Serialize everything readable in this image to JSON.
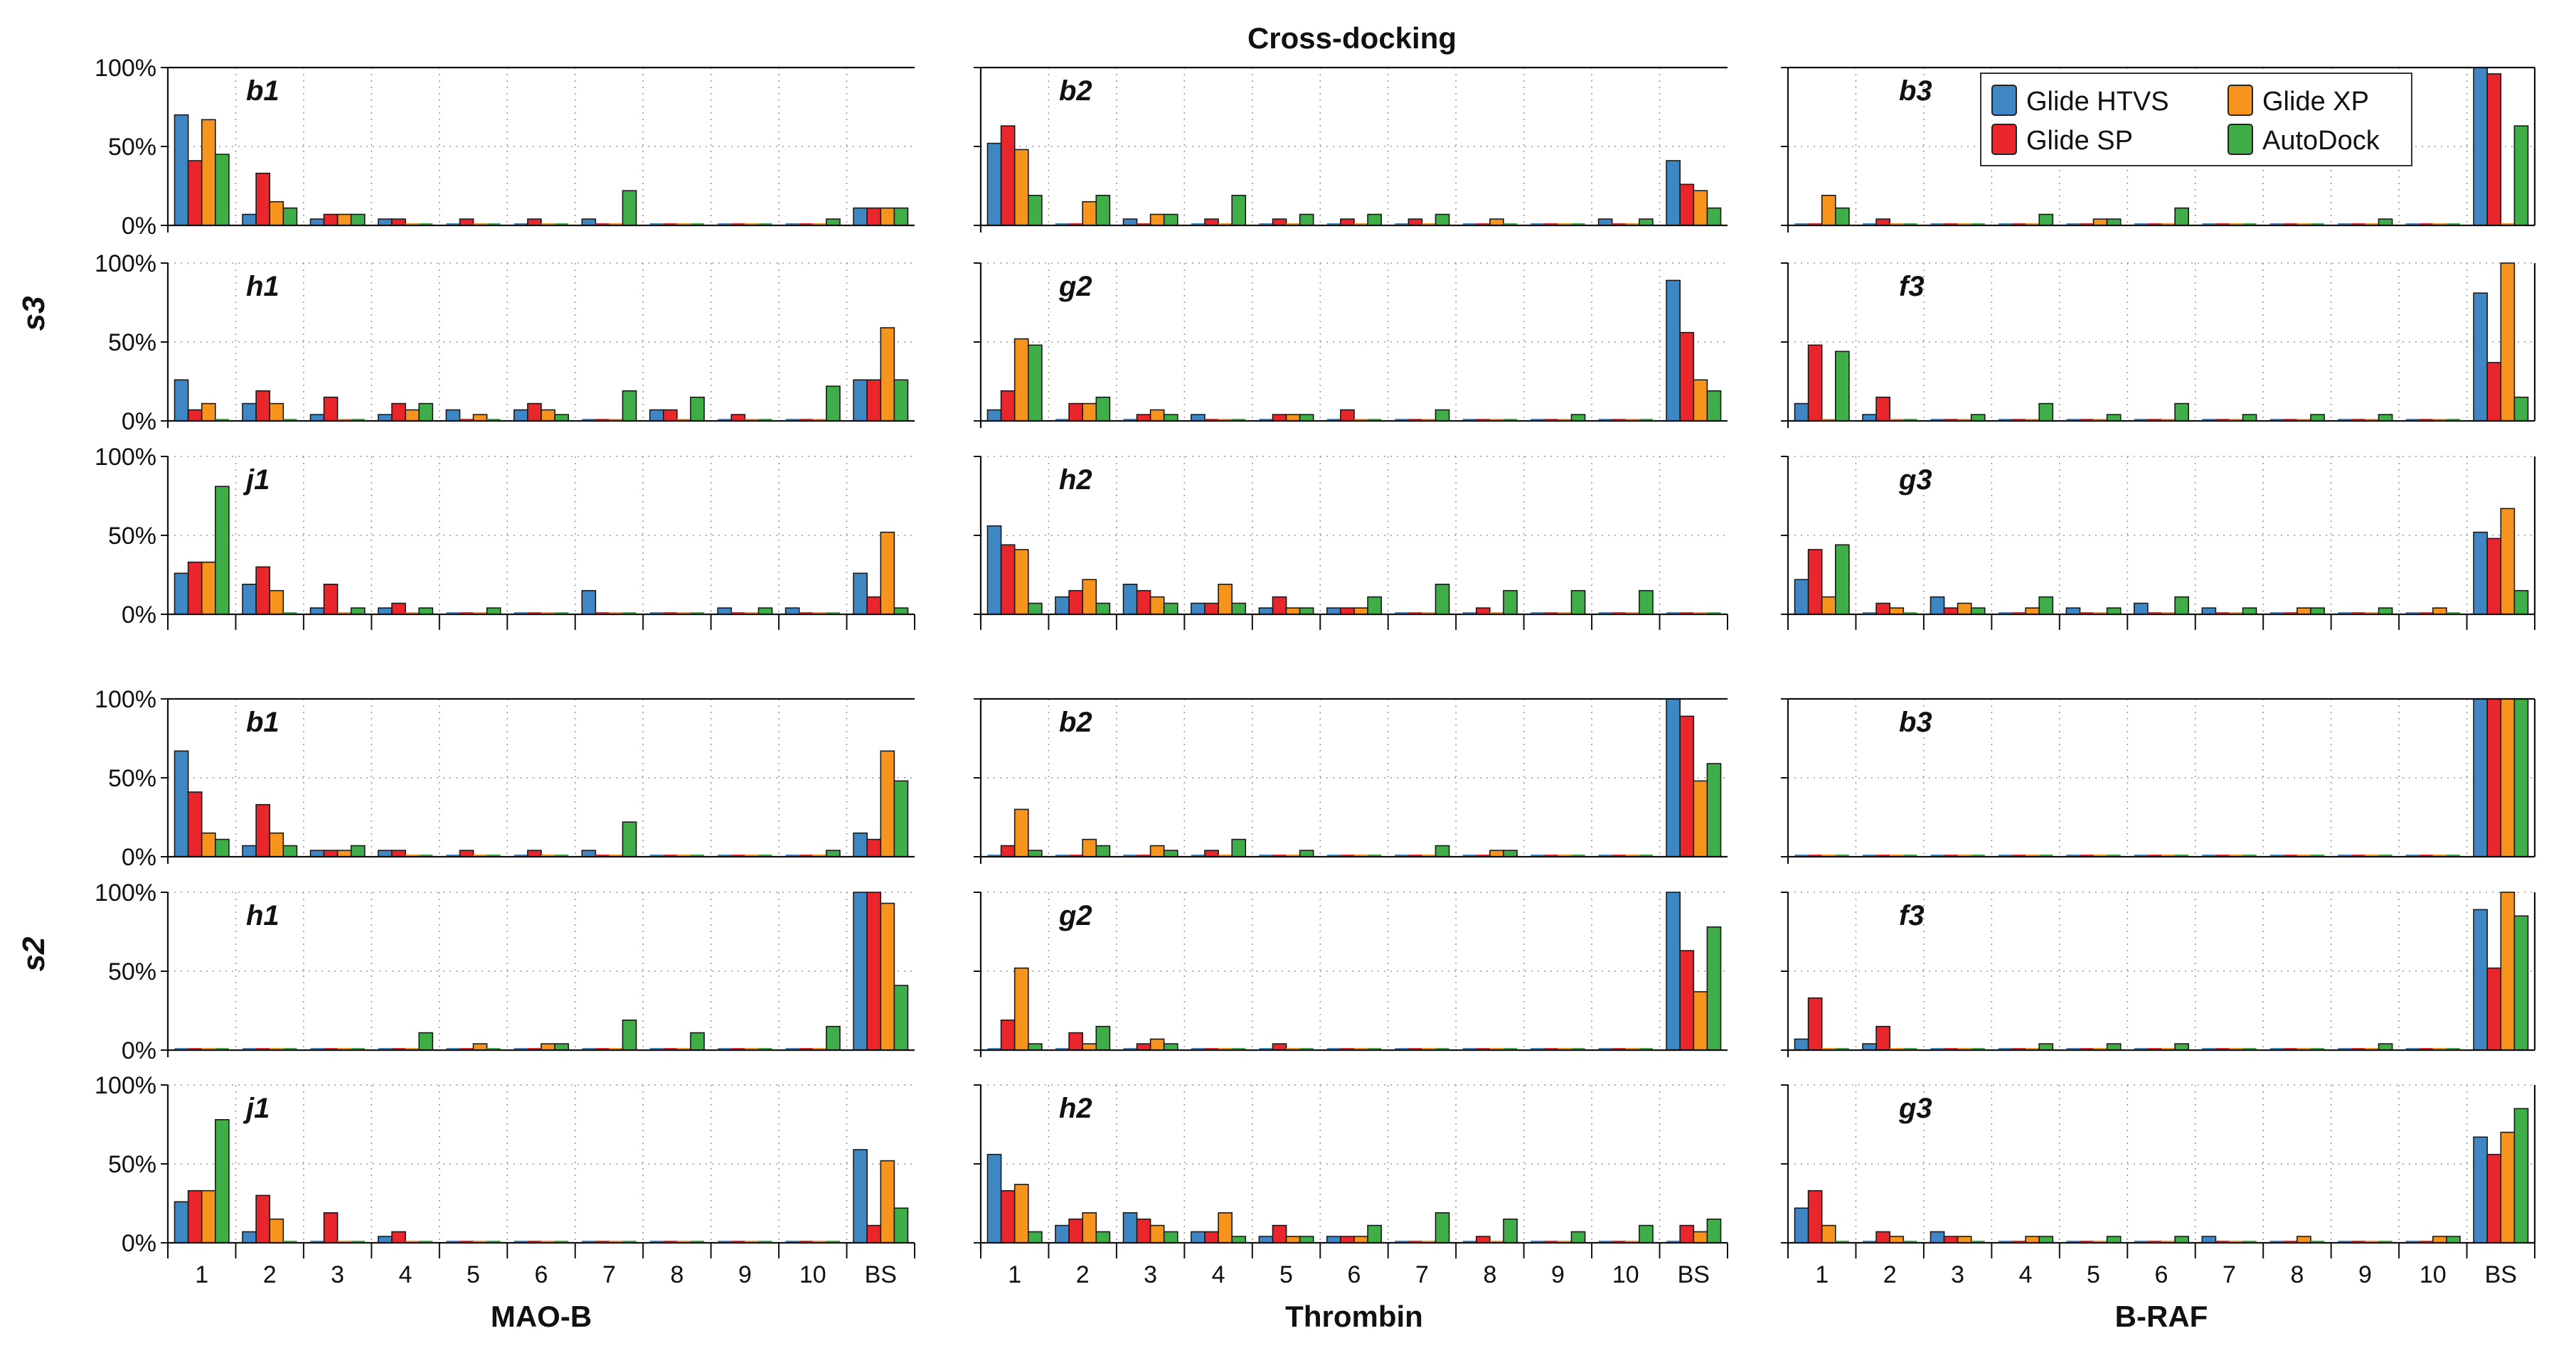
{
  "chart_data": {
    "type": "bar",
    "title": "Cross-docking",
    "categories": [
      "1",
      "2",
      "3",
      "4",
      "5",
      "6",
      "7",
      "8",
      "9",
      "10",
      "BS"
    ],
    "columns": [
      "MAO-B",
      "Thrombin",
      "B-RAF"
    ],
    "row_groups": [
      "s3",
      "s2"
    ],
    "ylim": [
      0,
      100
    ],
    "yticks": [
      "0%",
      "50%",
      "100%"
    ],
    "series_names": [
      "Glide HTVS",
      "Glide SP",
      "Glide XP",
      "AutoDock"
    ],
    "colors": [
      "#3f86c4",
      "#e8262b",
      "#f7941d",
      "#3fae49"
    ],
    "legend_position": "top-right",
    "panels": [
      {
        "group": "s3",
        "column": "MAO-B",
        "label": "b1",
        "values": [
          [
            70,
            41,
            67,
            45
          ],
          [
            7,
            33,
            15,
            11
          ],
          [
            4,
            7,
            7,
            7
          ],
          [
            4,
            4,
            0,
            0
          ],
          [
            0,
            4,
            0,
            0
          ],
          [
            0,
            4,
            0,
            0
          ],
          [
            4,
            0,
            0,
            22
          ],
          [
            0,
            0,
            0,
            0
          ],
          [
            0,
            0,
            0,
            0
          ],
          [
            0,
            0,
            0,
            4
          ],
          [
            11,
            11,
            11,
            11
          ]
        ]
      },
      {
        "group": "s3",
        "column": "Thrombin",
        "label": "b2",
        "values": [
          [
            52,
            63,
            48,
            19
          ],
          [
            0,
            0,
            15,
            19
          ],
          [
            4,
            0,
            7,
            7
          ],
          [
            0,
            4,
            0,
            19
          ],
          [
            0,
            4,
            0,
            7
          ],
          [
            0,
            4,
            0,
            7
          ],
          [
            0,
            4,
            0,
            7
          ],
          [
            0,
            0,
            4,
            0
          ],
          [
            0,
            0,
            0,
            0
          ],
          [
            4,
            0,
            0,
            4
          ],
          [
            41,
            26,
            22,
            11
          ]
        ]
      },
      {
        "group": "s3",
        "column": "B-RAF",
        "label": "b3",
        "values": [
          [
            0,
            0,
            19,
            11
          ],
          [
            0,
            4,
            0,
            0
          ],
          [
            0,
            0,
            0,
            0
          ],
          [
            0,
            0,
            0,
            7
          ],
          [
            0,
            0,
            4,
            4
          ],
          [
            0,
            0,
            0,
            11
          ],
          [
            0,
            0,
            0,
            0
          ],
          [
            0,
            0,
            0,
            0
          ],
          [
            0,
            0,
            0,
            4
          ],
          [
            0,
            0,
            0,
            0
          ],
          [
            100,
            96,
            0,
            63
          ]
        ]
      },
      {
        "group": "s3",
        "column": "MAO-B",
        "label": "h1",
        "values": [
          [
            26,
            7,
            11,
            0
          ],
          [
            11,
            19,
            11,
            0
          ],
          [
            4,
            15,
            0,
            0
          ],
          [
            4,
            11,
            7,
            11
          ],
          [
            7,
            0,
            4,
            0
          ],
          [
            7,
            11,
            7,
            4
          ],
          [
            0,
            0,
            0,
            19
          ],
          [
            7,
            7,
            0,
            15
          ],
          [
            0,
            4,
            0,
            0
          ],
          [
            0,
            0,
            0,
            22
          ],
          [
            26,
            26,
            59,
            26
          ]
        ]
      },
      {
        "group": "s3",
        "column": "Thrombin",
        "label": "g2",
        "values": [
          [
            7,
            19,
            52,
            48
          ],
          [
            0,
            11,
            11,
            15
          ],
          [
            0,
            4,
            7,
            4
          ],
          [
            4,
            0,
            0,
            0
          ],
          [
            0,
            4,
            4,
            4
          ],
          [
            0,
            7,
            0,
            0
          ],
          [
            0,
            0,
            0,
            7
          ],
          [
            0,
            0,
            0,
            0
          ],
          [
            0,
            0,
            0,
            4
          ],
          [
            0,
            0,
            0,
            0
          ],
          [
            89,
            56,
            26,
            19
          ]
        ]
      },
      {
        "group": "s3",
        "column": "B-RAF",
        "label": "f3",
        "values": [
          [
            11,
            48,
            0,
            44
          ],
          [
            4,
            15,
            0,
            0
          ],
          [
            0,
            0,
            0,
            4
          ],
          [
            0,
            0,
            0,
            11
          ],
          [
            0,
            0,
            0,
            4
          ],
          [
            0,
            0,
            0,
            11
          ],
          [
            0,
            0,
            0,
            4
          ],
          [
            0,
            0,
            0,
            4
          ],
          [
            0,
            0,
            0,
            4
          ],
          [
            0,
            0,
            0,
            0
          ],
          [
            81,
            37,
            100,
            15
          ]
        ]
      },
      {
        "group": "s3",
        "column": "MAO-B",
        "label": "j1",
        "values": [
          [
            26,
            33,
            33,
            81
          ],
          [
            19,
            30,
            15,
            0
          ],
          [
            4,
            19,
            0,
            4
          ],
          [
            4,
            7,
            0,
            4
          ],
          [
            0,
            0,
            0,
            4
          ],
          [
            0,
            0,
            0,
            0
          ],
          [
            15,
            0,
            0,
            0
          ],
          [
            0,
            0,
            0,
            0
          ],
          [
            4,
            0,
            0,
            4
          ],
          [
            4,
            0,
            0,
            0
          ],
          [
            26,
            11,
            52,
            4
          ]
        ]
      },
      {
        "group": "s3",
        "column": "Thrombin",
        "label": "h2",
        "values": [
          [
            56,
            44,
            41,
            7
          ],
          [
            11,
            15,
            22,
            7
          ],
          [
            19,
            15,
            11,
            7
          ],
          [
            7,
            7,
            19,
            7
          ],
          [
            4,
            11,
            4,
            4
          ],
          [
            4,
            4,
            4,
            11
          ],
          [
            0,
            0,
            0,
            19
          ],
          [
            0,
            4,
            0,
            15
          ],
          [
            0,
            0,
            0,
            15
          ],
          [
            0,
            0,
            0,
            15
          ],
          [
            0,
            0,
            0,
            0
          ]
        ]
      },
      {
        "group": "s3",
        "column": "B-RAF",
        "label": "g3",
        "values": [
          [
            22,
            41,
            11,
            44
          ],
          [
            0,
            7,
            4,
            0
          ],
          [
            11,
            4,
            7,
            4
          ],
          [
            0,
            0,
            4,
            11
          ],
          [
            4,
            0,
            0,
            4
          ],
          [
            7,
            0,
            0,
            11
          ],
          [
            4,
            0,
            0,
            4
          ],
          [
            0,
            0,
            4,
            4
          ],
          [
            0,
            0,
            0,
            4
          ],
          [
            0,
            0,
            4,
            0
          ],
          [
            52,
            48,
            67,
            15
          ]
        ]
      },
      {
        "group": "s2",
        "column": "MAO-B",
        "label": "b1",
        "values": [
          [
            67,
            41,
            15,
            11
          ],
          [
            7,
            33,
            15,
            7
          ],
          [
            4,
            4,
            4,
            7
          ],
          [
            4,
            4,
            0,
            0
          ],
          [
            0,
            4,
            0,
            0
          ],
          [
            0,
            4,
            0,
            0
          ],
          [
            4,
            0,
            0,
            22
          ],
          [
            0,
            0,
            0,
            0
          ],
          [
            0,
            0,
            0,
            0
          ],
          [
            0,
            0,
            0,
            4
          ],
          [
            15,
            11,
            67,
            48
          ]
        ]
      },
      {
        "group": "s2",
        "column": "Thrombin",
        "label": "b2",
        "values": [
          [
            0,
            7,
            30,
            4
          ],
          [
            0,
            0,
            11,
            7
          ],
          [
            0,
            0,
            7,
            4
          ],
          [
            0,
            4,
            0,
            11
          ],
          [
            0,
            0,
            0,
            4
          ],
          [
            0,
            0,
            0,
            0
          ],
          [
            0,
            0,
            0,
            7
          ],
          [
            0,
            0,
            4,
            4
          ],
          [
            0,
            0,
            0,
            0
          ],
          [
            0,
            0,
            0,
            0
          ],
          [
            100,
            89,
            48,
            59
          ]
        ]
      },
      {
        "group": "s2",
        "column": "B-RAF",
        "label": "b3",
        "values": [
          [
            0,
            0,
            0,
            0
          ],
          [
            0,
            0,
            0,
            0
          ],
          [
            0,
            0,
            0,
            0
          ],
          [
            0,
            0,
            0,
            0
          ],
          [
            0,
            0,
            0,
            0
          ],
          [
            0,
            0,
            0,
            0
          ],
          [
            0,
            0,
            0,
            0
          ],
          [
            0,
            0,
            0,
            0
          ],
          [
            0,
            0,
            0,
            0
          ],
          [
            0,
            0,
            0,
            0
          ],
          [
            100,
            100,
            100,
            100
          ]
        ]
      },
      {
        "group": "s2",
        "column": "MAO-B",
        "label": "h1",
        "values": [
          [
            0,
            0,
            0,
            0
          ],
          [
            0,
            0,
            0,
            0
          ],
          [
            0,
            0,
            0,
            0
          ],
          [
            0,
            0,
            0,
            11
          ],
          [
            0,
            0,
            4,
            0
          ],
          [
            0,
            0,
            4,
            4
          ],
          [
            0,
            0,
            0,
            19
          ],
          [
            0,
            0,
            0,
            11
          ],
          [
            0,
            0,
            0,
            0
          ],
          [
            0,
            0,
            0,
            15
          ],
          [
            100,
            100,
            93,
            41
          ]
        ]
      },
      {
        "group": "s2",
        "column": "Thrombin",
        "label": "g2",
        "values": [
          [
            0,
            19,
            52,
            4
          ],
          [
            0,
            11,
            4,
            15
          ],
          [
            0,
            4,
            7,
            4
          ],
          [
            0,
            0,
            0,
            0
          ],
          [
            0,
            4,
            0,
            0
          ],
          [
            0,
            0,
            0,
            0
          ],
          [
            0,
            0,
            0,
            0
          ],
          [
            0,
            0,
            0,
            0
          ],
          [
            0,
            0,
            0,
            0
          ],
          [
            0,
            0,
            0,
            0
          ],
          [
            100,
            63,
            37,
            78
          ]
        ]
      },
      {
        "group": "s2",
        "column": "B-RAF",
        "label": "f3",
        "values": [
          [
            7,
            33,
            0,
            0
          ],
          [
            4,
            15,
            0,
            0
          ],
          [
            0,
            0,
            0,
            0
          ],
          [
            0,
            0,
            0,
            4
          ],
          [
            0,
            0,
            0,
            4
          ],
          [
            0,
            0,
            0,
            4
          ],
          [
            0,
            0,
            0,
            0
          ],
          [
            0,
            0,
            0,
            0
          ],
          [
            0,
            0,
            0,
            4
          ],
          [
            0,
            0,
            0,
            0
          ],
          [
            89,
            52,
            100,
            85
          ]
        ]
      },
      {
        "group": "s2",
        "column": "MAO-B",
        "label": "j1",
        "values": [
          [
            26,
            33,
            33,
            78
          ],
          [
            7,
            30,
            15,
            0
          ],
          [
            0,
            19,
            0,
            0
          ],
          [
            4,
            7,
            0,
            0
          ],
          [
            0,
            0,
            0,
            0
          ],
          [
            0,
            0,
            0,
            0
          ],
          [
            0,
            0,
            0,
            0
          ],
          [
            0,
            0,
            0,
            0
          ],
          [
            0,
            0,
            0,
            0
          ],
          [
            0,
            0,
            0,
            0
          ],
          [
            59,
            11,
            52,
            22
          ]
        ]
      },
      {
        "group": "s2",
        "column": "Thrombin",
        "label": "h2",
        "values": [
          [
            56,
            33,
            37,
            7
          ],
          [
            11,
            15,
            19,
            7
          ],
          [
            19,
            15,
            11,
            7
          ],
          [
            7,
            7,
            19,
            4
          ],
          [
            4,
            11,
            4,
            4
          ],
          [
            4,
            4,
            4,
            11
          ],
          [
            0,
            0,
            0,
            19
          ],
          [
            0,
            4,
            0,
            15
          ],
          [
            0,
            0,
            0,
            7
          ],
          [
            0,
            0,
            0,
            11
          ],
          [
            0,
            11,
            7,
            15
          ]
        ]
      },
      {
        "group": "s2",
        "column": "B-RAF",
        "label": "g3",
        "values": [
          [
            22,
            33,
            11,
            0
          ],
          [
            0,
            7,
            4,
            0
          ],
          [
            7,
            4,
            4,
            0
          ],
          [
            0,
            0,
            4,
            4
          ],
          [
            0,
            0,
            0,
            4
          ],
          [
            0,
            0,
            0,
            4
          ],
          [
            4,
            0,
            0,
            0
          ],
          [
            0,
            0,
            4,
            0
          ],
          [
            0,
            0,
            0,
            0
          ],
          [
            0,
            0,
            4,
            4
          ],
          [
            67,
            56,
            70,
            85
          ]
        ]
      }
    ]
  }
}
